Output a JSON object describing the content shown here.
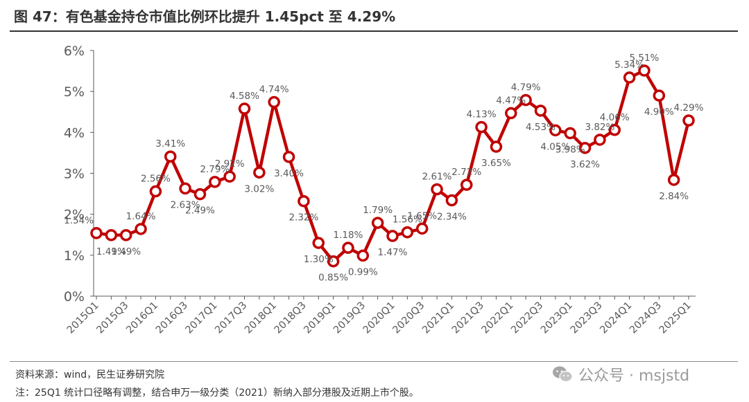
{
  "title": "图 47：有色基金持仓市值比例环比提升 1.45pct 至 4.29%",
  "source": "资料来源：wind，民生证券研究院",
  "note": "注：25Q1 统计口径略有调整，结合申万一级分类（2021）新纳入部分港股及近期上市个股。",
  "watermark": {
    "text": "公众号 · msjstd",
    "icon": "wechat-icon"
  },
  "colors": {
    "line": "#c00000",
    "marker_fill": "#ffffff",
    "axis": "#595959",
    "label": "#595959"
  },
  "chart_data": {
    "type": "line",
    "title": "",
    "xlabel": "",
    "ylabel": "",
    "ylim": [
      0,
      6
    ],
    "yticks": [
      "0%",
      "1%",
      "2%",
      "3%",
      "4%",
      "5%",
      "6%"
    ],
    "grid": false,
    "legend": "none",
    "categories": [
      "2015Q1",
      "2015Q2",
      "2015Q3",
      "2015Q4",
      "2016Q1",
      "2016Q2",
      "2016Q3",
      "2016Q4",
      "2017Q1",
      "2017Q2",
      "2017Q3",
      "2017Q4",
      "2018Q1",
      "2018Q2",
      "2018Q3",
      "2018Q4",
      "2019Q1",
      "2019Q2",
      "2019Q3",
      "2019Q4",
      "2020Q1",
      "2020Q2",
      "2020Q3",
      "2020Q4",
      "2021Q1",
      "2021Q2",
      "2021Q3",
      "2021Q4",
      "2022Q1",
      "2022Q2",
      "2022Q3",
      "2022Q4",
      "2023Q1",
      "2023Q2",
      "2023Q3",
      "2023Q4",
      "2024Q1",
      "2024Q2",
      "2024Q3",
      "2024Q4",
      "2025Q1"
    ],
    "xtick_labels": [
      "2015Q1",
      "2015Q3",
      "2016Q1",
      "2016Q3",
      "2017Q1",
      "2017Q3",
      "2018Q1",
      "2018Q3",
      "2019Q1",
      "2019Q3",
      "2020Q1",
      "2020Q3",
      "2021Q1",
      "2021Q3",
      "2022Q1",
      "2022Q3",
      "2023Q1",
      "2023Q3",
      "2024Q1",
      "2024Q3",
      "2025Q1"
    ],
    "values": [
      1.54,
      1.49,
      1.49,
      1.64,
      2.56,
      3.41,
      2.63,
      2.49,
      2.79,
      2.92,
      4.58,
      3.02,
      4.74,
      3.4,
      2.32,
      1.3,
      0.85,
      1.18,
      0.99,
      1.79,
      1.47,
      1.56,
      1.65,
      2.61,
      2.34,
      2.72,
      4.13,
      3.65,
      4.47,
      4.79,
      4.53,
      4.05,
      3.98,
      3.62,
      3.82,
      4.06,
      5.34,
      5.51,
      4.9,
      2.84,
      4.29
    ],
    "data_labels": [
      "1.54%",
      "1.49%",
      "1.49%",
      "1.64%",
      "2.56%",
      "3.41%",
      "2.63%",
      "2.49%",
      "2.79%",
      "2.92%",
      "4.58%",
      "3.02%",
      "4.74%",
      "3.40%",
      "2.32%",
      "1.30%",
      "0.85%",
      "1.18%",
      "0.99%",
      "1.79%",
      "1.47%",
      "1.56%",
      "1.65%",
      "2.61%",
      "2.34%",
      "2.72%",
      "4.13%",
      "3.65%",
      "4.47%",
      "4.79%",
      "4.53%",
      "4.05%",
      "3.98%",
      "3.62%",
      "3.82%",
      "4.06%",
      "5.34%",
      "5.51%",
      "4.90%",
      "2.84%",
      "4.29%"
    ]
  }
}
